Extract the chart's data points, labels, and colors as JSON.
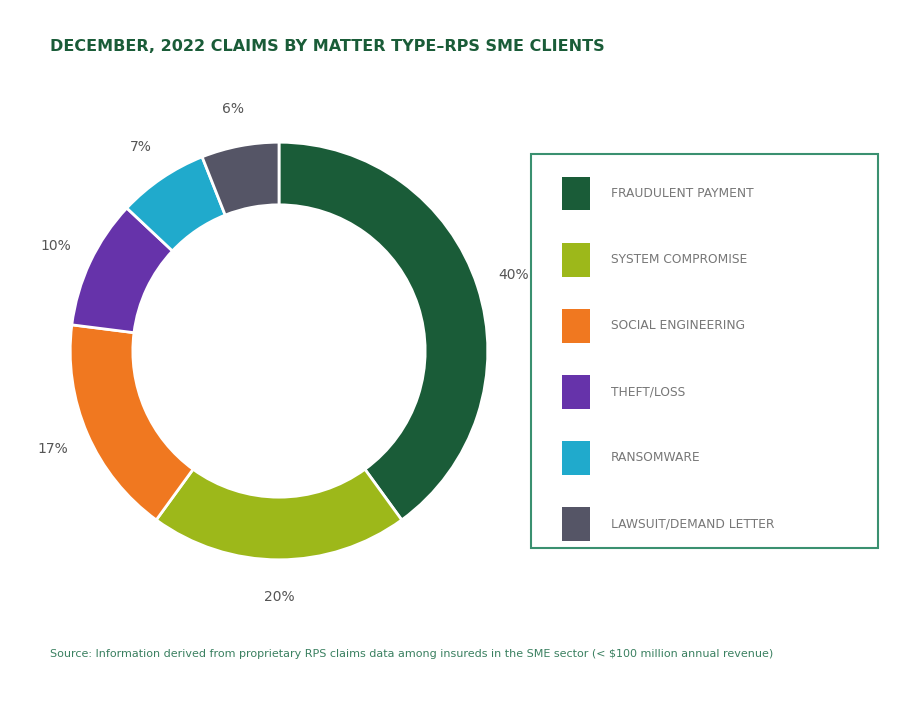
{
  "title": "DECEMBER, 2022 CLAIMS BY MATTER TYPE–RPS SME CLIENTS",
  "title_color": "#1a5c38",
  "title_fontsize": 11.5,
  "source_text": "Source: Information derived from proprietary RPS claims data among insureds in the SME sector (< $100 million annual revenue)",
  "source_color": "#3a8060",
  "source_fontsize": 8,
  "labels": [
    "FRAUDULENT PAYMENT",
    "SYSTEM COMPROMISE",
    "SOCIAL ENGINEERING",
    "THEFT/LOSS",
    "RANSOMWARE",
    "LAWSUIT/DEMAND LETTER"
  ],
  "values": [
    40,
    20,
    17,
    10,
    7,
    6
  ],
  "colors": [
    "#1a5c38",
    "#9db81a",
    "#f07820",
    "#6633aa",
    "#20aacc",
    "#555566"
  ],
  "pct_labels": [
    "40%",
    "20%",
    "17%",
    "10%",
    "7%",
    "6%"
  ],
  "legend_box_color": "#3a9070",
  "legend_text_color": "#777777",
  "pct_label_color": "#555555",
  "background_color": "#ffffff",
  "donut_width": 0.3
}
